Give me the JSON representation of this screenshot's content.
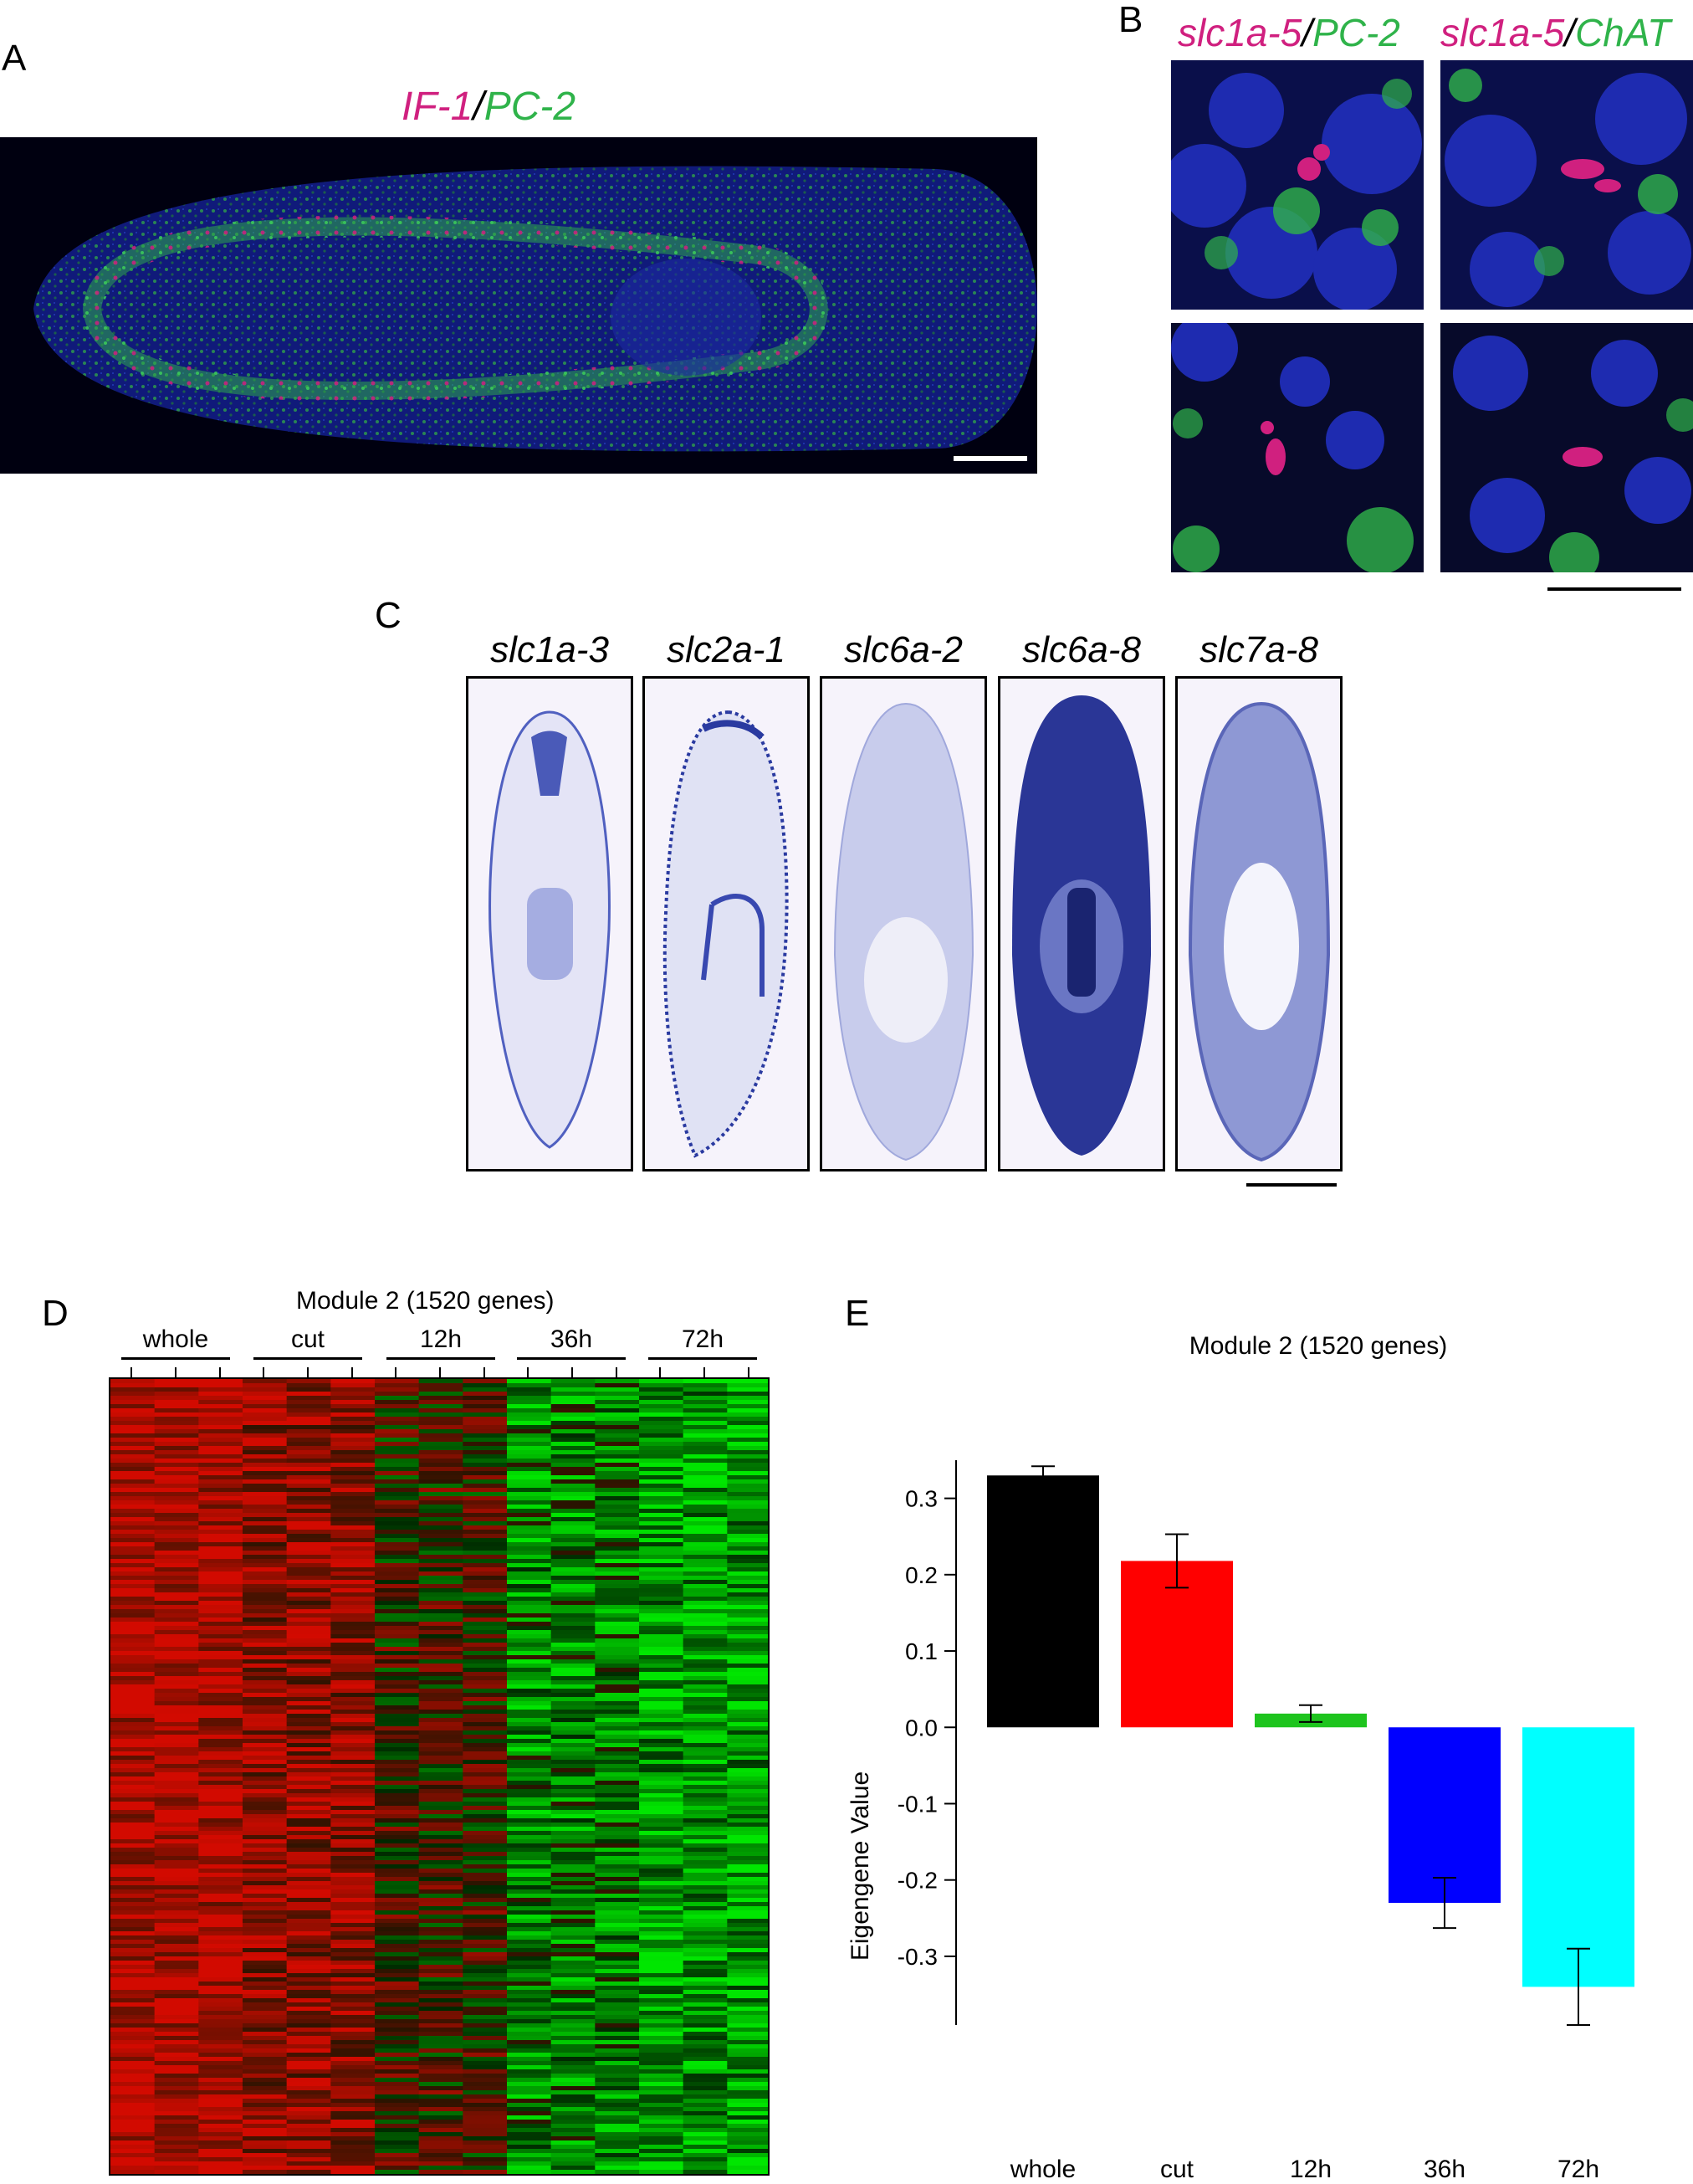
{
  "panels": {
    "A": {
      "letter": "A",
      "title_part1": "IF-1",
      "title_sep": "/",
      "title_part2": "PC-2"
    },
    "B": {
      "letter": "B",
      "col1_part1": "slc1a-5",
      "col1_sep": "/",
      "col1_part2": "PC-2",
      "col2_part1": "slc1a-5",
      "col2_sep": "/",
      "col2_part2": "ChAT"
    },
    "C": {
      "letter": "C",
      "genes": [
        "slc1a-3",
        "slc2a-1",
        "slc6a-2",
        "slc6a-8",
        "slc7a-8"
      ]
    },
    "D": {
      "letter": "D",
      "title": "Module 2 (1520 genes)",
      "groups": [
        "whole",
        "cut",
        "12h",
        "36h",
        "72h"
      ]
    },
    "E": {
      "letter": "E"
    }
  },
  "chart_data": {
    "type": "bar",
    "title": "Module 2 (1520 genes)",
    "xlabel": "",
    "ylabel": "Eigengene Value",
    "categories": [
      "whole",
      "cut",
      "12h",
      "36h",
      "72h"
    ],
    "values": [
      0.33,
      0.218,
      0.018,
      -0.23,
      -0.34
    ],
    "errors": [
      0.012,
      0.035,
      0.011,
      0.033,
      0.05
    ],
    "colors": [
      "#000000",
      "#ff0000",
      "#1ec41e",
      "#0000ff",
      "#00ffff"
    ],
    "ylim": [
      -0.39,
      0.35
    ],
    "yticks": [
      0.3,
      0.2,
      0.1,
      0.0,
      -0.1,
      -0.2,
      -0.3
    ],
    "ytick_labels": [
      "0.3",
      "0.2",
      "0.1",
      "0.0",
      "-0.1",
      "-0.2",
      "-0.3"
    ],
    "grid": false
  }
}
